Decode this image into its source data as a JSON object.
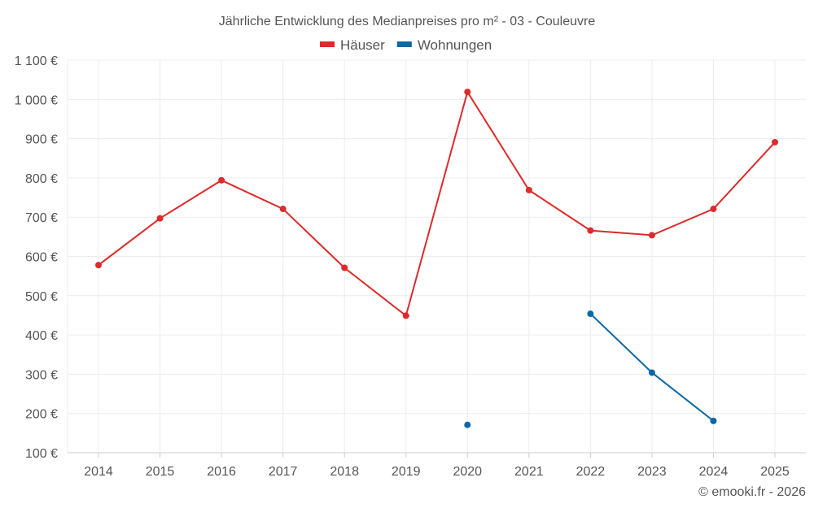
{
  "chart_data": {
    "type": "line",
    "title": "Jährliche Entwicklung des Medianpreises pro m² - 03 - Couleuvre",
    "categories": [
      "2014",
      "2015",
      "2016",
      "2017",
      "2018",
      "2019",
      "2020",
      "2021",
      "2022",
      "2023",
      "2024",
      "2025"
    ],
    "series": [
      {
        "name": "Häuser",
        "color": "#dd2a2a",
        "values": [
          578,
          697,
          794,
          721,
          571,
          449,
          1019,
          769,
          666,
          654,
          721,
          891
        ]
      },
      {
        "name": "Wohnungen",
        "color": "#0a68a6",
        "values": [
          null,
          null,
          null,
          null,
          null,
          null,
          171,
          null,
          454,
          304,
          181,
          null
        ]
      }
    ],
    "ylim": [
      100,
      1100
    ],
    "yticks": [
      100,
      200,
      300,
      400,
      500,
      600,
      700,
      800,
      900,
      1000,
      1100
    ],
    "ytick_labels": [
      "100 €",
      "200 €",
      "300 €",
      "400 €",
      "500 €",
      "600 €",
      "700 €",
      "800 €",
      "900 €",
      "1 000 €",
      "1 100 €"
    ],
    "grid": true,
    "legend": "top-center",
    "xlabel": "",
    "ylabel": ""
  },
  "credit": "© emooki.fr - 2026"
}
